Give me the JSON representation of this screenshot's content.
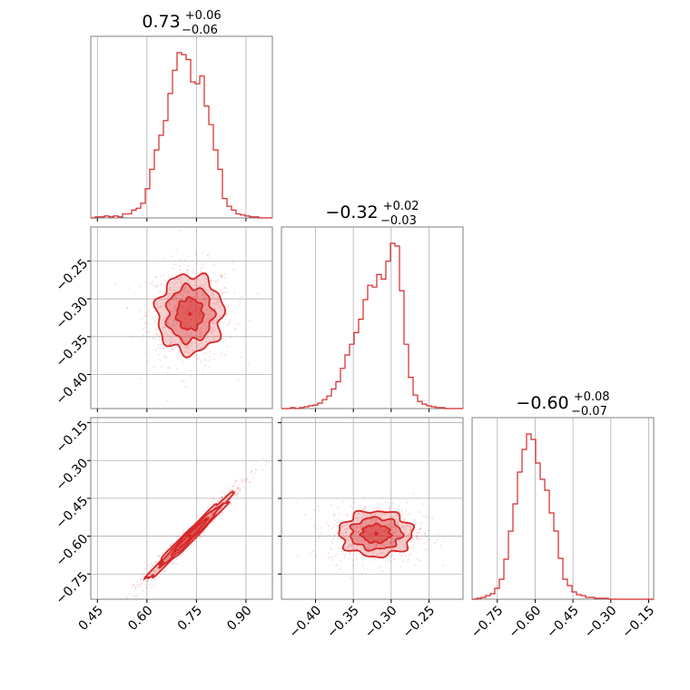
{
  "chart_data": {
    "type": "corner",
    "color": "#d62728",
    "grid": true,
    "parameters": [
      {
        "title": {
          "median": "0.73",
          "plus": "+0.06",
          "minus": "−0.06"
        },
        "range": [
          0.43,
          0.98
        ],
        "ticks": [
          {
            "v": 0.45,
            "label": "0.45"
          },
          {
            "v": 0.6,
            "label": "0.60"
          },
          {
            "v": 0.75,
            "label": "0.75"
          },
          {
            "v": 0.9,
            "label": "0.90"
          }
        ]
      },
      {
        "title": {
          "median": "−0.32",
          "plus": "+0.02",
          "minus": "−0.03"
        },
        "range": [
          -0.445,
          -0.205
        ],
        "ticks": [
          {
            "v": -0.4,
            "label": "−0.40"
          },
          {
            "v": -0.35,
            "label": "−0.35"
          },
          {
            "v": -0.3,
            "label": "−0.30"
          },
          {
            "v": -0.25,
            "label": "−0.25"
          }
        ]
      },
      {
        "title": {
          "median": "−0.60",
          "plus": "+0.08",
          "minus": "−0.07"
        },
        "range": [
          -0.85,
          -0.13
        ],
        "ticks": [
          {
            "v": -0.75,
            "label": "−0.75"
          },
          {
            "v": -0.6,
            "label": "−0.60"
          },
          {
            "v": -0.45,
            "label": "−0.45"
          },
          {
            "v": -0.3,
            "label": "−0.30"
          },
          {
            "v": -0.15,
            "label": "−0.15"
          }
        ]
      }
    ],
    "histograms": [
      {
        "bin_edges": [
          0.43,
          0.98
        ],
        "counts": [
          0,
          1,
          1,
          2,
          1,
          2,
          1,
          4,
          4,
          8,
          10,
          15,
          30,
          50,
          70,
          85,
          100,
          128,
          152,
          170,
          168,
          163,
          140,
          138,
          146,
          115,
          96,
          70,
          50,
          20,
          12,
          8,
          4,
          3,
          2,
          1,
          1,
          0,
          0,
          0
        ]
      },
      {
        "bin_edges": [
          -0.445,
          -0.205
        ],
        "counts": [
          0,
          0,
          1,
          0,
          1,
          2,
          3,
          4,
          6,
          10,
          14,
          22,
          30,
          45,
          60,
          72,
          85,
          100,
          122,
          138,
          136,
          150,
          145,
          165,
          185,
          182,
          132,
          72,
          35,
          15,
          8,
          5,
          3,
          2,
          1,
          1,
          0,
          0,
          0,
          0
        ]
      },
      {
        "bin_edges": [
          -0.85,
          -0.13
        ],
        "counts": [
          0,
          1,
          2,
          4,
          6,
          12,
          22,
          44,
          75,
          105,
          140,
          165,
          182,
          176,
          150,
          132,
          120,
          95,
          75,
          45,
          22,
          15,
          8,
          5,
          4,
          2,
          2,
          1,
          1,
          1,
          0,
          0,
          0,
          0,
          0,
          0,
          0,
          0,
          0,
          0
        ]
      }
    ],
    "scatter_panels": [
      {
        "x": 0,
        "y": 1,
        "center": [
          0.73,
          -0.32
        ],
        "spread": [
          0.05,
          0.026
        ],
        "correlation": 0.0
      },
      {
        "x": 0,
        "y": 2,
        "center": [
          0.73,
          -0.6
        ],
        "spread": [
          0.065,
          0.085
        ],
        "correlation": 0.985
      },
      {
        "x": 1,
        "y": 2,
        "center": [
          -0.32,
          -0.59
        ],
        "spread": [
          0.024,
          0.045
        ],
        "correlation": 0.0
      }
    ]
  }
}
